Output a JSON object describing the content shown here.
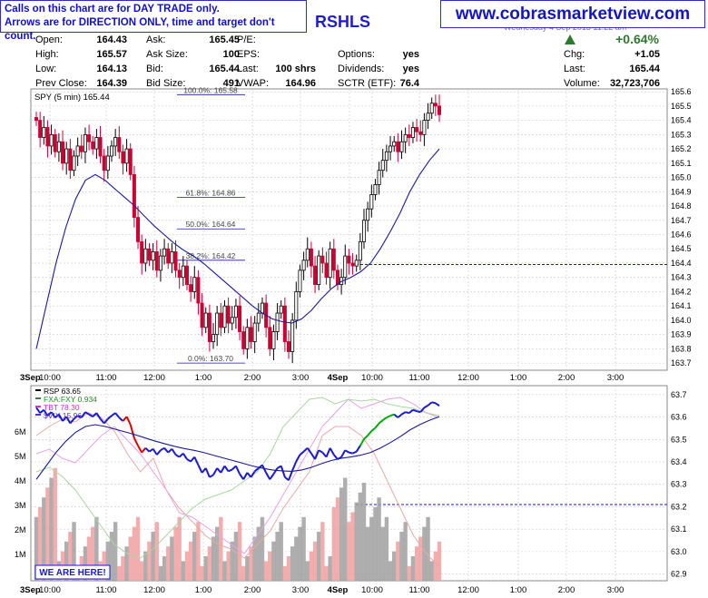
{
  "notice": {
    "line1": "Calls on this chart are for DAY TRADE only.",
    "line2": "Arrows are for DIRECTION ONLY, time and target don't count."
  },
  "brand": "www.cobrasmarketview.com",
  "symbol_fragment": "RSHLS",
  "datetime_fragment": "Wednesday 4 Sep 2013 11:22 am",
  "quote": {
    "open_label": "Open:",
    "open": "164.43",
    "high_label": "High:",
    "high": "165.57",
    "low_label": "Low:",
    "low": "164.13",
    "prev_label": "Prev Close:",
    "prev": "164.39",
    "ask_label": "Ask:",
    "ask": "165.45",
    "asksize_label": "Ask Size:",
    "asksize": "100",
    "bid_label": "Bid:",
    "bid": "165.44",
    "bidsize_label": "Bid Size:",
    "bidsize": "491",
    "pe_label": "P/E:",
    "pe": "",
    "eps_label": "EPS:",
    "eps": "",
    "last_label": "Last:",
    "last_shrs": "100 shrs",
    "vwap_label": "VWAP:",
    "vwap": "164.96",
    "options_label": "Options:",
    "options": "yes",
    "dividends_label": "Dividends:",
    "dividends": "yes",
    "sctr_label": "SCTR (ETF):",
    "sctr": "76.4",
    "pct_change": "+0.64%",
    "chg_label": "Chg:",
    "chg": "+1.05",
    "last2_label": "Last:",
    "last2": "165.44",
    "volume_label": "Volume:",
    "volume": "32,723,706"
  },
  "colors": {
    "up": "#000000",
    "down": "#cc0033",
    "ma": "#1a1a99",
    "rsp_up": "#00aa00",
    "rsp_down": "#dd0000",
    "rsp_flat": "#1a1ad0",
    "vix": "#e8a0e8",
    "fxa": "#a8d8a0",
    "tbt": "#e8a8a8",
    "volume": "#a0a0a0",
    "volume_down": "#f0a0a0",
    "grid": "#c8c8c8",
    "fib": "#1a1a99"
  },
  "chart_data": [
    {
      "type": "candlestick",
      "title": "SPY (5 min) 165.44",
      "ylim": [
        163.65,
        165.62
      ],
      "yticks": [
        "165.6",
        "165.5",
        "165.4",
        "165.3",
        "165.2",
        "165.1",
        "165.0",
        "164.9",
        "164.8",
        "164.7",
        "164.6",
        "164.5",
        "164.4",
        "164.3",
        "164.2",
        "164.1",
        "164.0",
        "163.9",
        "163.8",
        "163.7"
      ],
      "xticks": [
        "3Sep",
        "10:00",
        "11:00",
        "12:00",
        "1:00",
        "2:00",
        "3:00",
        "4Sep",
        "10:00",
        "11:00",
        "12:00",
        "1:00",
        "2:00",
        "3:00"
      ],
      "close": [
        165.4,
        165.28,
        165.35,
        165.22,
        165.3,
        165.18,
        165.25,
        165.1,
        165.2,
        165.05,
        165.15,
        165.22,
        165.18,
        165.3,
        165.25,
        165.2,
        165.28,
        165.15,
        165.05,
        165.15,
        165.22,
        165.28,
        165.18,
        165.1,
        165.2,
        165.02,
        164.72,
        164.55,
        164.4,
        164.5,
        164.42,
        164.48,
        164.35,
        164.45,
        164.5,
        164.4,
        164.48,
        164.35,
        164.3,
        164.38,
        164.25,
        164.2,
        164.3,
        164.12,
        163.95,
        164.05,
        163.85,
        163.9,
        164.05,
        163.95,
        164.1,
        163.98,
        164.02,
        164.1,
        163.92,
        163.8,
        163.95,
        163.85,
        163.98,
        164.05,
        164.12,
        163.95,
        163.8,
        163.92,
        164.05,
        164.1,
        163.85,
        163.78,
        164.0,
        164.2,
        164.35,
        164.42,
        164.5,
        164.38,
        164.25,
        164.45,
        164.4,
        164.3,
        164.5,
        164.35,
        164.25,
        164.3,
        164.45,
        164.4,
        164.38,
        164.42,
        164.55,
        164.7,
        164.78,
        164.88,
        164.95,
        165.05,
        165.12,
        165.18,
        165.22,
        165.25,
        165.18,
        165.25,
        165.3,
        165.28,
        165.35,
        165.32,
        165.3,
        165.4,
        165.45,
        165.52,
        165.5,
        165.44
      ],
      "moving_average": [
        163.8,
        164.1,
        164.4,
        164.65,
        164.85,
        164.98,
        165.02,
        164.98,
        164.92,
        164.86,
        164.8,
        164.73,
        164.66,
        164.6,
        164.54,
        164.49,
        164.45,
        164.4,
        164.34,
        164.28,
        164.22,
        164.16,
        164.1,
        164.05,
        164.01,
        163.99,
        163.98,
        164.01,
        164.07,
        164.15,
        164.22,
        164.27,
        164.3,
        164.34,
        164.4,
        164.5,
        164.62,
        164.75,
        164.9,
        165.02,
        165.12,
        165.2
      ],
      "fib_levels": [
        {
          "label": "100.0%: 165.58",
          "value": 165.58
        },
        {
          "label": "61.8%: 164.86",
          "value": 164.86
        },
        {
          "label": "50.0%: 164.64",
          "value": 164.64
        },
        {
          "label": "38.2%: 164.42",
          "value": 164.42
        },
        {
          "label": "0.0%: 163.70",
          "value": 163.7
        }
      ],
      "reference_line": 164.39
    },
    {
      "type": "line",
      "legend": [
        "RSP 63.65",
        "FXA:FXY 0.934",
        "TBT 78.30",
        "$VIX 15.96"
      ],
      "ylim": [
        62.87,
        63.74
      ],
      "yticks": [
        "63.7",
        "63.6",
        "63.5",
        "63.4",
        "63.3",
        "63.2",
        "63.1",
        "63.0",
        "62.9"
      ],
      "volume_ticks": [
        "6M",
        "5M",
        "4M",
        "3M",
        "2M",
        "1M"
      ],
      "annotation": "WE ARE HERE!",
      "reference_line": 63.21
    }
  ]
}
